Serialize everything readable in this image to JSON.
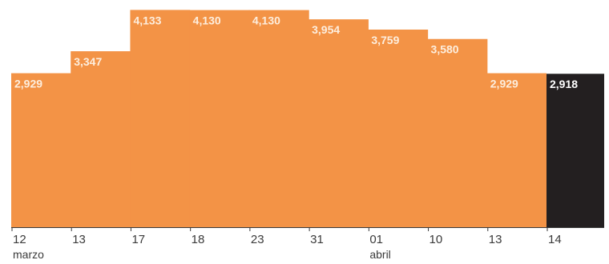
{
  "chart_data": {
    "type": "bar",
    "categories": [
      "12",
      "13",
      "17",
      "18",
      "23",
      "31",
      "01",
      "10",
      "13",
      "14"
    ],
    "month_labels": [
      {
        "index": 0,
        "label": "marzo"
      },
      {
        "index": 6,
        "label": "abril"
      }
    ],
    "value_labels": [
      "2,929",
      "3,347",
      "4,133",
      "4,130",
      "4,130",
      "3,954",
      "3,759",
      "3,580",
      "2,929",
      "2,918"
    ],
    "values": [
      2929,
      3347,
      4133,
      4130,
      4130,
      3954,
      3759,
      3580,
      2929,
      2918
    ],
    "ylim": [
      0,
      4200
    ],
    "grid": false,
    "legend": "none",
    "colors": {
      "bar": "#f39346",
      "highlight_bar": "#231f20",
      "baseline": "#3a3a3a",
      "tick": "#3a3a3a"
    },
    "highlight_index": 9
  }
}
